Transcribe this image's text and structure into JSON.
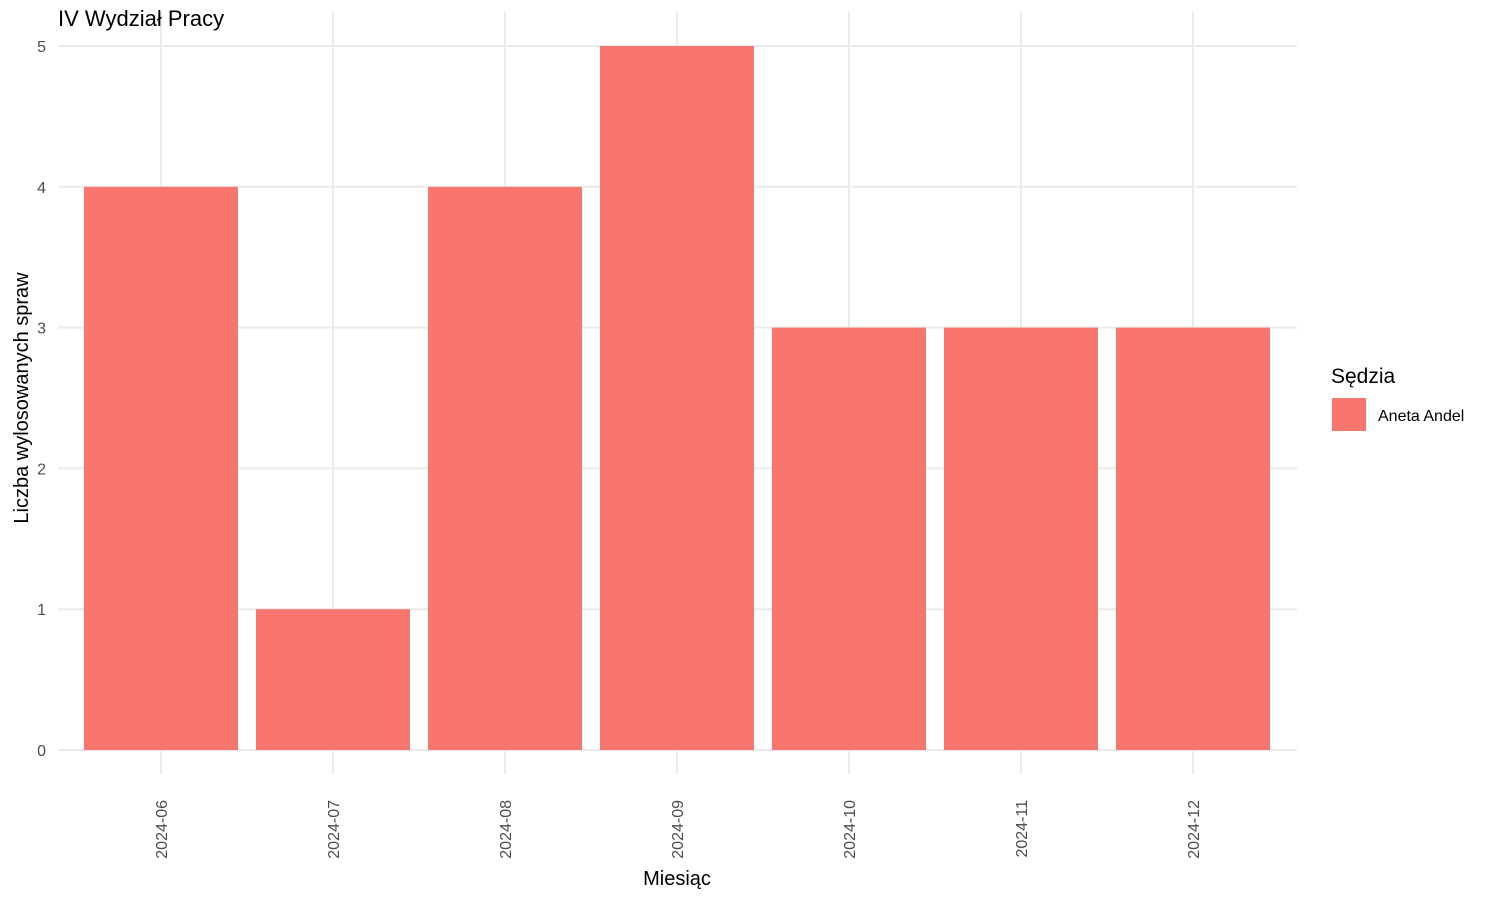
{
  "chart_data": {
    "type": "bar",
    "title": "IV Wydział Pracy",
    "xlabel": "Miesiąc",
    "ylabel": "Liczba wylosowanych spraw",
    "categories": [
      "2024-06",
      "2024-07",
      "2024-08",
      "2024-09",
      "2024-10",
      "2024-11",
      "2024-12"
    ],
    "series": [
      {
        "name": "Aneta Andel",
        "values": [
          4,
          1,
          4,
          5,
          3,
          3,
          3
        ],
        "color": "#f8766d"
      }
    ],
    "ylim": [
      0,
      5
    ],
    "yticks": [
      0,
      1,
      2,
      3,
      4,
      5
    ],
    "grid": true,
    "legend": {
      "title": "Sędzia",
      "position": "right"
    }
  }
}
